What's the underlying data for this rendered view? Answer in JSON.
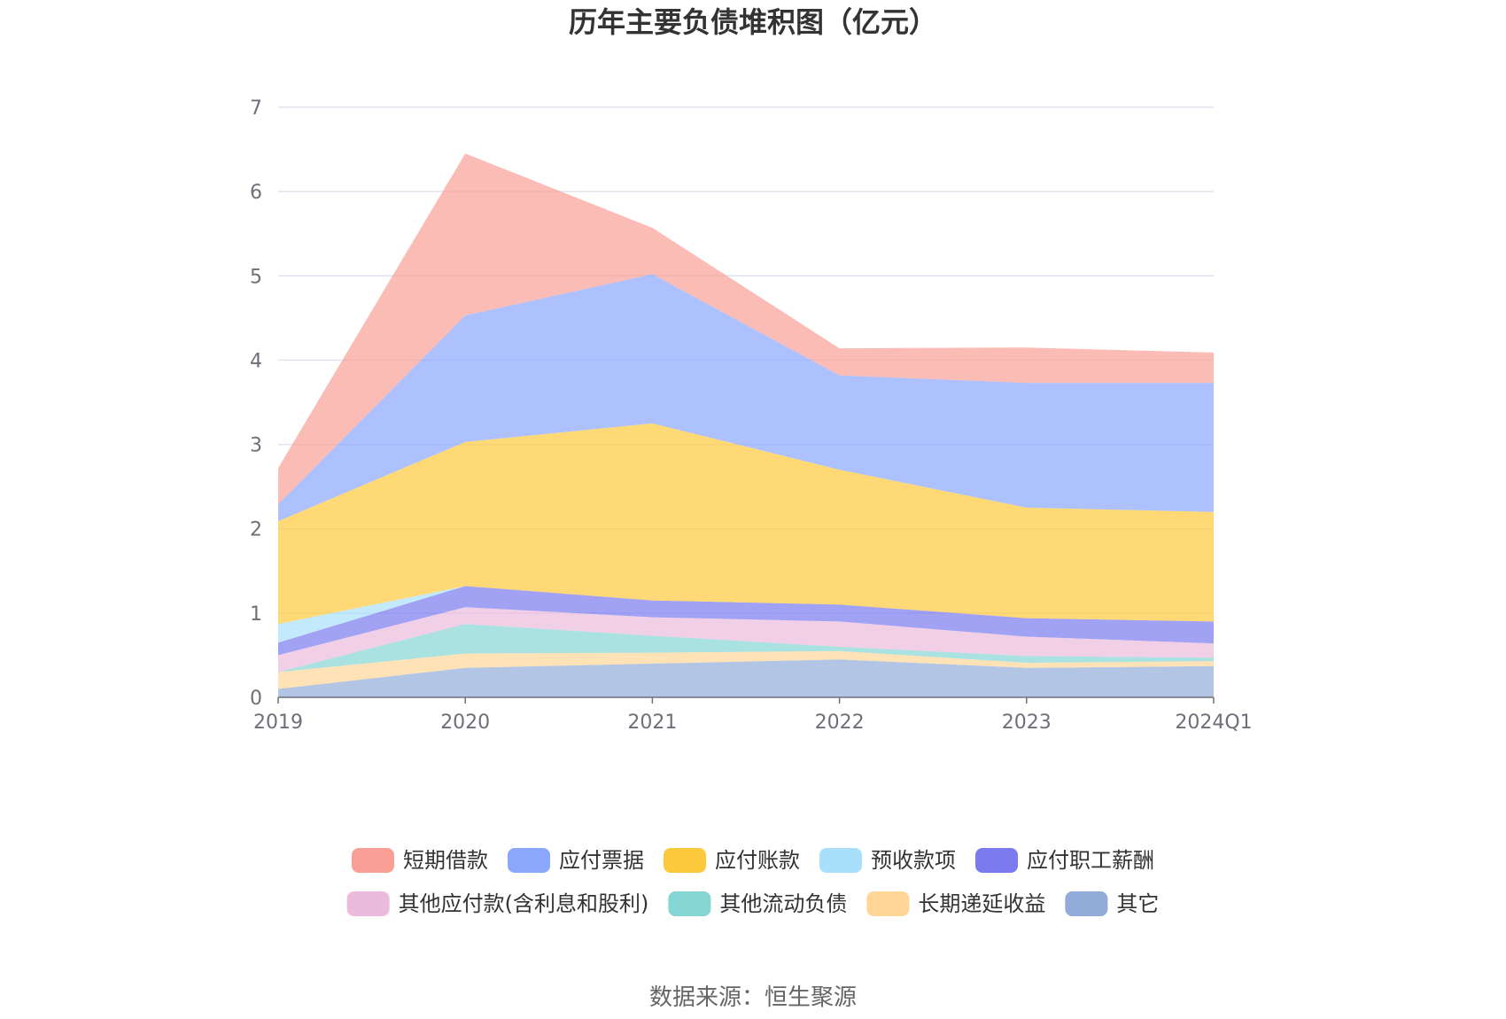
{
  "chart_data": {
    "type": "area",
    "title": "历年主要负债堆积图（亿元）",
    "source": "数据来源：恒生聚源",
    "x": [
      "2019",
      "2020",
      "2021",
      "2022",
      "2023",
      "2024Q1"
    ],
    "ylim": [
      0,
      7
    ],
    "yticks": [
      "0",
      "1",
      "2",
      "3",
      "4",
      "5",
      "6",
      "7"
    ],
    "stacked": true,
    "grid": true,
    "legend_position": "bottom",
    "series": [
      {
        "name": "其它",
        "color": "#91acd9",
        "values": [
          0.1,
          0.35,
          0.4,
          0.45,
          0.35,
          0.37
        ]
      },
      {
        "name": "长期递延收益",
        "color": "#ffd696",
        "values": [
          0.2,
          0.17,
          0.13,
          0.1,
          0.06,
          0.06
        ]
      },
      {
        "name": "其他流动负债",
        "color": "#84d6d4",
        "values": [
          0.0,
          0.35,
          0.2,
          0.05,
          0.08,
          0.04
        ]
      },
      {
        "name": "其他应付款(含利息和股利)",
        "color": "#ebbbdd",
        "values": [
          0.2,
          0.2,
          0.22,
          0.3,
          0.23,
          0.17
        ]
      },
      {
        "name": "应付职工薪酬",
        "color": "#7b7bef",
        "values": [
          0.15,
          0.25,
          0.2,
          0.2,
          0.22,
          0.26
        ]
      },
      {
        "name": "预收款项",
        "color": "#a8e0fb",
        "values": [
          0.22,
          0.0,
          0.0,
          0.0,
          0.0,
          0.0
        ]
      },
      {
        "name": "应付账款",
        "color": "#fdc93c",
        "values": [
          1.22,
          1.71,
          2.1,
          1.6,
          1.31,
          1.3
        ]
      },
      {
        "name": "应付票据",
        "color": "#8aa6fd",
        "values": [
          0.2,
          1.5,
          1.77,
          1.12,
          1.48,
          1.53
        ]
      },
      {
        "name": "短期借款",
        "color": "#fa9f96",
        "values": [
          0.43,
          1.92,
          0.55,
          0.32,
          0.42,
          0.36
        ]
      }
    ],
    "legend_order": [
      "短期借款",
      "应付票据",
      "应付账款",
      "预收款项",
      "应付职工薪酬",
      "其他应付款(含利息和股利)",
      "其他流动负债",
      "长期递延收益",
      "其它"
    ]
  }
}
